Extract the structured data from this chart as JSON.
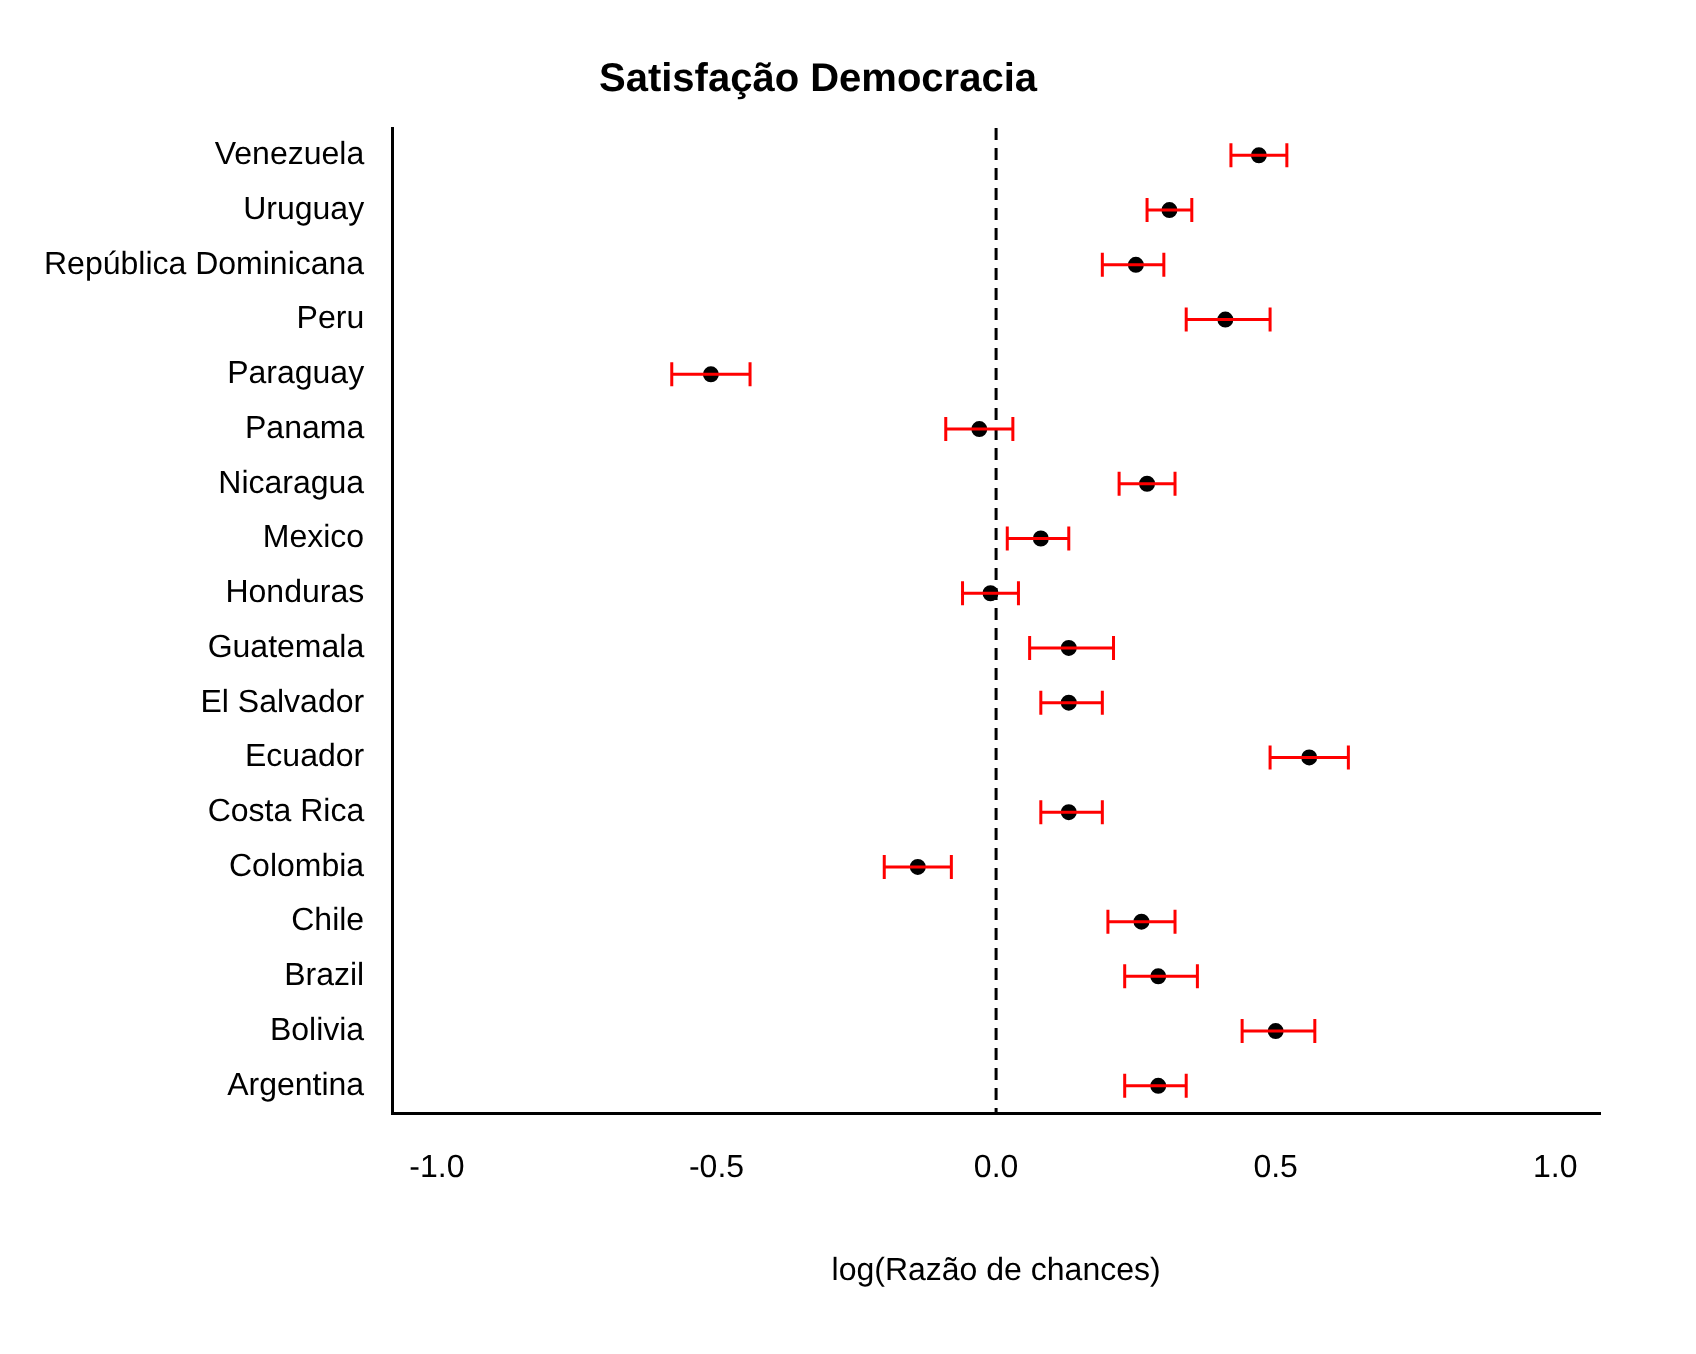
{
  "chart_data": {
    "type": "scatter",
    "orientation": "horizontal",
    "title": "Satisfação Democracia",
    "xlabel": "log(Razão de chances)",
    "categories": [
      "Venezuela",
      "Uruguay",
      "República Dominicana",
      "Peru",
      "Paraguay",
      "Panama",
      "Nicaragua",
      "Mexico",
      "Honduras",
      "Guatemala",
      "El Salvador",
      "Ecuador",
      "Costa Rica",
      "Colombia",
      "Chile",
      "Brazil",
      "Bolivia",
      "Argentina"
    ],
    "series": [
      {
        "color": "#000000",
        "values": [
          0.47,
          0.31,
          0.25,
          0.41,
          -0.51,
          -0.03,
          0.27,
          0.08,
          -0.01,
          0.13,
          0.13,
          0.56,
          0.13,
          -0.14,
          0.26,
          0.29,
          0.5,
          0.29
        ],
        "errors": [
          [
            0.42,
            0.52
          ],
          [
            0.27,
            0.35
          ],
          [
            0.19,
            0.3
          ],
          [
            0.34,
            0.49
          ],
          [
            -0.58,
            -0.44
          ],
          [
            -0.09,
            0.03
          ],
          [
            0.22,
            0.32
          ],
          [
            0.02,
            0.13
          ],
          [
            -0.06,
            0.04
          ],
          [
            0.06,
            0.21
          ],
          [
            0.08,
            0.19
          ],
          [
            0.49,
            0.63
          ],
          [
            0.08,
            0.19
          ],
          [
            -0.2,
            -0.08
          ],
          [
            0.2,
            0.32
          ],
          [
            0.23,
            0.36
          ],
          [
            0.44,
            0.57
          ],
          [
            0.23,
            0.34
          ]
        ]
      }
    ],
    "xlim": [
      -1.08,
      1.08
    ],
    "xticks": [
      {
        "value": -1,
        "label": "-1.0"
      },
      {
        "value": -0.5,
        "label": "-0.5"
      },
      {
        "value": 0,
        "label": "0.0"
      },
      {
        "value": 0.5,
        "label": "0.5"
      },
      {
        "value": 1,
        "label": "1.0"
      }
    ],
    "ref_lines": [
      {
        "axis": "x",
        "value": 0,
        "line_style": "dashed",
        "color": "#000000"
      }
    ],
    "marker": "circle",
    "grid": false,
    "legend": false
  }
}
